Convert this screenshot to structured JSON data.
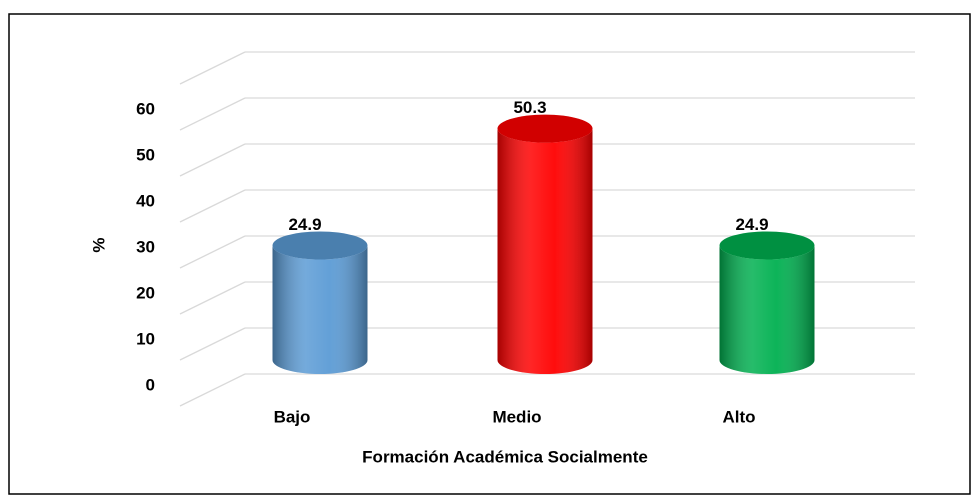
{
  "chart_data": {
    "type": "bar3d-cylinder",
    "categories": [
      "Bajo",
      "Medio",
      "Alto"
    ],
    "values": [
      24.9,
      50.3,
      24.9
    ],
    "colors": [
      "#5b9bd5",
      "#ff0000",
      "#00b050"
    ],
    "ylim": [
      0,
      70
    ],
    "yticks": [
      0,
      10,
      20,
      30,
      40,
      50,
      60
    ],
    "y_label": "%",
    "x_label": "Formación Académica Socialmente",
    "grid": true
  }
}
